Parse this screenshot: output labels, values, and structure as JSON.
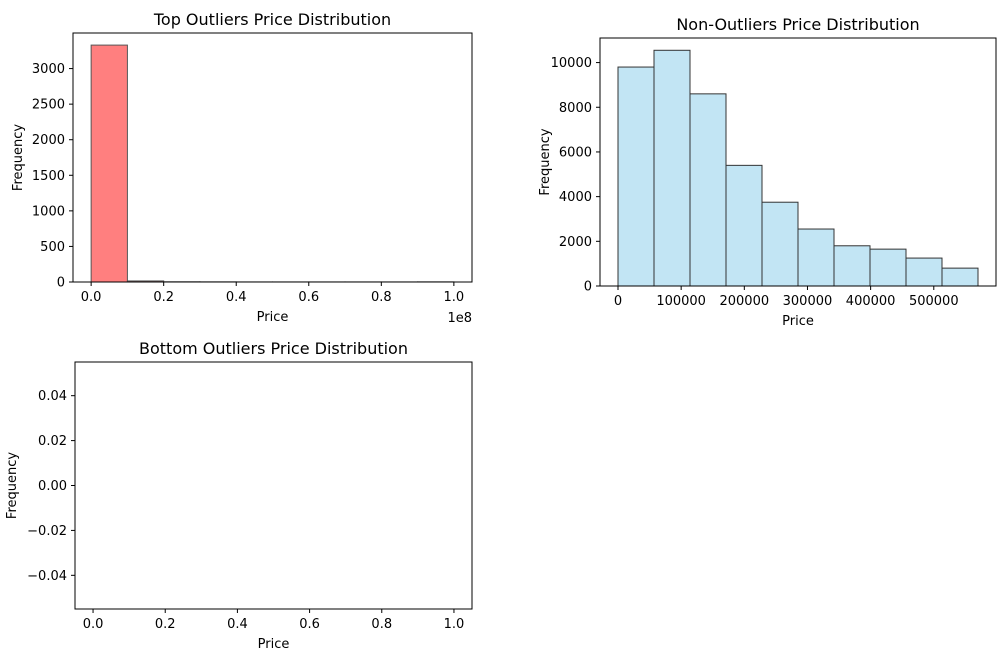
{
  "chart_data": [
    {
      "id": "top",
      "type": "bar",
      "title": "Top Outliers Price Distribution",
      "xlabel": "Price",
      "ylabel": "Frequency",
      "x_offset_label": "1e8",
      "xlim": [
        -0.05,
        1.05
      ],
      "ylim": [
        0,
        3500
      ],
      "xticks": [
        0.0,
        0.2,
        0.4,
        0.6,
        0.8,
        1.0
      ],
      "xtick_labels": [
        "0.0",
        "0.2",
        "0.4",
        "0.6",
        "0.8",
        "1.0"
      ],
      "yticks": [
        0,
        500,
        1000,
        1500,
        2000,
        2500,
        3000
      ],
      "ytick_labels": [
        "0",
        "500",
        "1000",
        "1500",
        "2000",
        "2500",
        "3000"
      ],
      "bin_edges": [
        0.0,
        0.1,
        0.2,
        0.3,
        0.4,
        0.5,
        0.6,
        0.7,
        0.8,
        0.9,
        1.0
      ],
      "values": [
        3330,
        15,
        3,
        2,
        1,
        1,
        1,
        1,
        1,
        2
      ],
      "color": "#ff7f7f",
      "edge_color": "#555555"
    },
    {
      "id": "non",
      "type": "bar",
      "title": "Non-Outliers Price Distribution",
      "xlabel": "Price",
      "ylabel": "Frequency",
      "xlim": [
        -28500,
        598500
      ],
      "ylim": [
        0,
        11100
      ],
      "xticks": [
        0,
        100000,
        200000,
        300000,
        400000,
        500000
      ],
      "xtick_labels": [
        "0",
        "100000",
        "200000",
        "300000",
        "400000",
        "500000"
      ],
      "yticks": [
        0,
        2000,
        4000,
        6000,
        8000,
        10000
      ],
      "ytick_labels": [
        "0",
        "2000",
        "4000",
        "6000",
        "8000",
        "10000"
      ],
      "bin_edges": [
        0,
        57000,
        114000,
        171000,
        228000,
        285000,
        342000,
        399000,
        456000,
        513000,
        570000
      ],
      "values": [
        9800,
        10550,
        8600,
        5400,
        3750,
        2550,
        1800,
        1650,
        1250,
        800
      ],
      "color": "#c2e5f4",
      "edge_color": "#333333"
    },
    {
      "id": "bottom",
      "type": "bar",
      "title": "Bottom Outliers Price Distribution",
      "xlabel": "Price",
      "ylabel": "Frequency",
      "xlim": [
        -0.05,
        1.05
      ],
      "ylim": [
        -0.055,
        0.055
      ],
      "xticks": [
        0.0,
        0.2,
        0.4,
        0.6,
        0.8,
        1.0
      ],
      "xtick_labels": [
        "0.0",
        "0.2",
        "0.4",
        "0.6",
        "0.8",
        "1.0"
      ],
      "yticks": [
        -0.04,
        -0.02,
        0.0,
        0.02,
        0.04
      ],
      "ytick_labels": [
        "−0.04",
        "−0.02",
        "0.00",
        "0.02",
        "0.04"
      ],
      "bin_edges": [
        0.0,
        0.1,
        0.2,
        0.3,
        0.4,
        0.5,
        0.6,
        0.7,
        0.8,
        0.9,
        1.0
      ],
      "values": [
        0,
        0,
        0,
        0,
        0,
        0,
        0,
        0,
        0,
        0
      ],
      "color": "#c2e5f4",
      "edge_color": "#808080"
    }
  ]
}
